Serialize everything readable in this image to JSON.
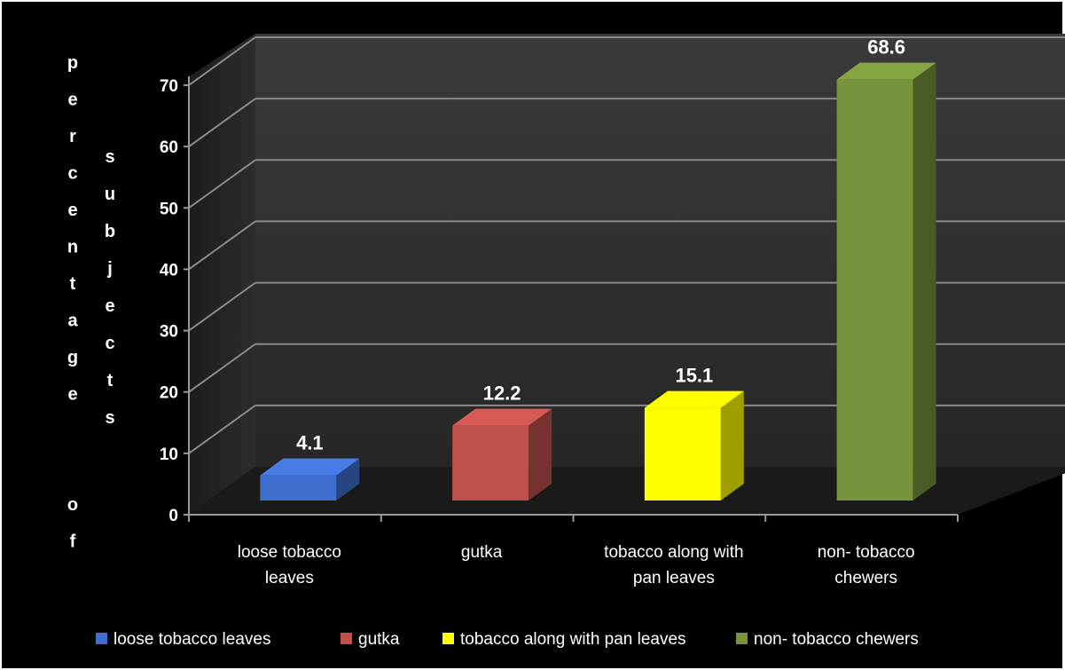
{
  "chart_data": {
    "type": "bar",
    "style": "3d",
    "categories": [
      "loose tobacco leaves",
      "gutka",
      "tobacco along with pan leaves",
      "non- tobacco chewers"
    ],
    "category_label_lines": [
      [
        "loose tobacco",
        "leaves"
      ],
      [
        "gutka"
      ],
      [
        "tobacco along with",
        "pan leaves"
      ],
      [
        "non- tobacco",
        "chewers"
      ]
    ],
    "values": [
      4.1,
      12.2,
      15.1,
      68.6
    ],
    "data_labels": [
      "4.1",
      "12.2",
      "15.1",
      "68.6"
    ],
    "colors": [
      "#3f6fce",
      "#c0504d",
      "#ffff00",
      "#77933c"
    ],
    "yticks": [
      "0",
      "10",
      "20",
      "30",
      "40",
      "50",
      "60",
      "70"
    ],
    "ylim": [
      0,
      70
    ],
    "ylabel": "percentage of subjects",
    "grid": true,
    "legend_position": "bottom",
    "legend": [
      "loose tobacco leaves",
      "gutka",
      "tobacco along with pan leaves",
      "non- tobacco chewers"
    ]
  }
}
